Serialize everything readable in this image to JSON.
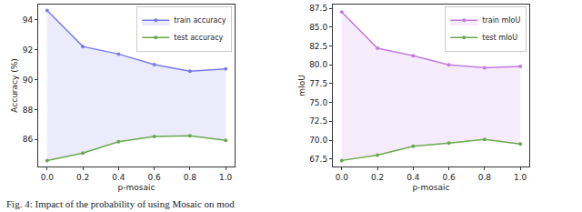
{
  "chart_data": [
    {
      "type": "line",
      "x_label": "p-mosaic",
      "y_label": "Accuracy (%)",
      "x": [
        0,
        0.2,
        0.4,
        0.6,
        0.8,
        1.0
      ],
      "series": [
        {
          "name": "test accuracy",
          "color": "#6aa84f",
          "values": [
            84.6,
            85.1,
            85.85,
            86.2,
            86.25,
            85.95
          ]
        },
        {
          "name": "train accuracy",
          "color": "#7b7be8",
          "values": [
            94.6,
            92.2,
            91.7,
            91.0,
            90.55,
            90.7
          ]
        }
      ],
      "xlim": [
        -0.05,
        1.05
      ],
      "xticks": [
        {
          "value": 0,
          "label": "0.0"
        },
        0.2,
        0.4,
        0.6,
        0.8,
        {
          "value": 1,
          "label": "1.0"
        }
      ],
      "ylim": [
        84.2,
        95.0
      ],
      "yticks": [
        86,
        88,
        90,
        92,
        94
      ],
      "grid": false,
      "legend": "upper right",
      "marker": "circle"
    },
    {
      "type": "line",
      "x_label": "p-mosaic",
      "y_label": "mIoU",
      "x": [
        0,
        0.2,
        0.4,
        0.6,
        0.8,
        1.0
      ],
      "series": [
        {
          "name": "test mIoU",
          "color": "#6aa84f",
          "values": [
            67.3,
            68.0,
            69.2,
            69.6,
            70.1,
            69.5
          ]
        },
        {
          "name": "train mIoU",
          "color": "#c27be0",
          "values": [
            87.0,
            82.2,
            81.2,
            80.0,
            79.6,
            79.8
          ]
        }
      ],
      "xlim": [
        -0.05,
        1.05
      ],
      "xticks": [
        {
          "value": 0,
          "label": "0.0"
        },
        0.2,
        0.4,
        0.6,
        0.8,
        {
          "value": 1,
          "label": "1.0"
        }
      ],
      "ylim": [
        66.5,
        88.0
      ],
      "yticks": [
        67.5,
        {
          "value": 70,
          "label": "70.0"
        },
        72.5,
        {
          "value": 75,
          "label": "75.0"
        },
        77.5,
        {
          "value": 80,
          "label": "80.0"
        },
        82.5,
        {
          "value": 85,
          "label": "85.0"
        },
        87.5
      ],
      "grid": false,
      "legend": "upper right",
      "marker": "circle"
    }
  ],
  "caption": "Fig. 4: Impact of the probability of using Mosaic on mod"
}
